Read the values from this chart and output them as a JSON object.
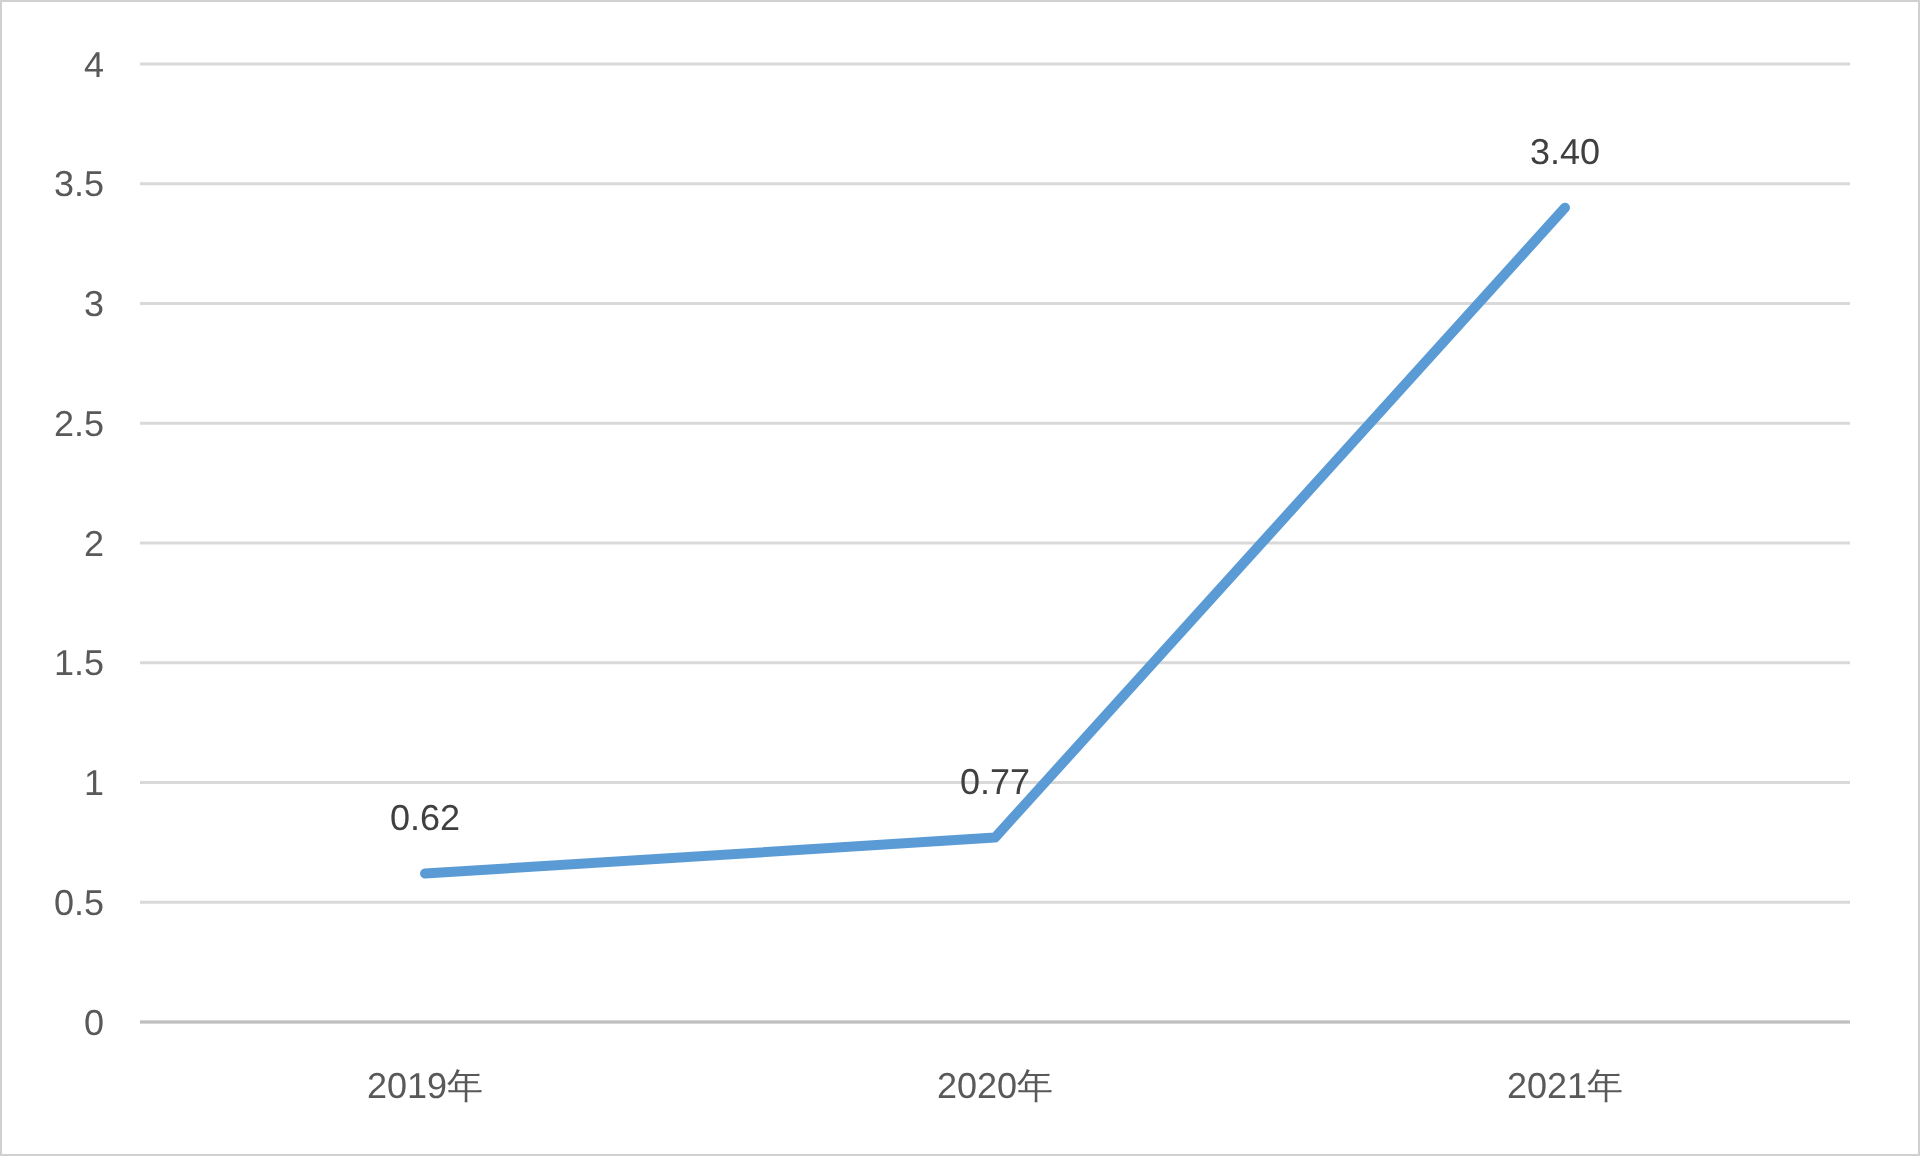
{
  "chart_data": {
    "type": "line",
    "categories": [
      "2019年",
      "2020年",
      "2021年"
    ],
    "series": [
      {
        "color": "#5b9bd5",
        "values": [
          0.62,
          0.77,
          3.4
        ],
        "value_labels": [
          "0.62",
          "0.77",
          "3.40"
        ]
      }
    ],
    "ylim": [
      0,
      4
    ],
    "yticks": [
      0,
      0.5,
      1,
      1.5,
      2,
      2.5,
      3,
      3.5,
      4
    ],
    "grid": "y",
    "marker": "none",
    "line_style": "solid"
  }
}
